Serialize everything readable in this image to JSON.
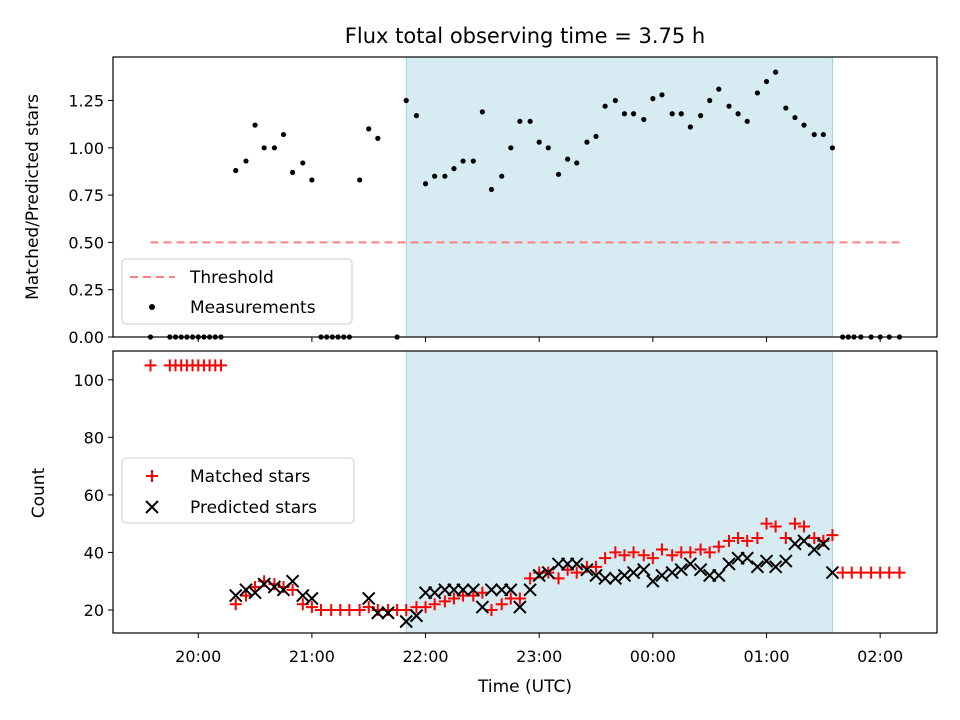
{
  "chart_data": [
    {
      "type": "scatter",
      "title": "Flux total observing time = 3.75 h",
      "ylabel": "Matched/Predicted stars",
      "xlabel": "",
      "x_units": "hours since 20:00 UTC",
      "xlim": [
        -0.75,
        6.5
      ],
      "ylim": [
        0,
        1.48
      ],
      "y_ticks": [
        0,
        0.25,
        0.5,
        0.75,
        1.0,
        1.25
      ],
      "y_tick_labels": [
        "0.00",
        "0.25",
        "0.50",
        "0.75",
        "1.00",
        "1.25"
      ],
      "shaded_span": [
        1.83,
        5.58
      ],
      "legend": {
        "placement": "lower-left",
        "entries": [
          "Threshold",
          "Measurements"
        ]
      },
      "threshold": {
        "name": "Threshold",
        "value": 0.5,
        "x_range": [
          -0.42,
          6.17
        ],
        "color": "#ff8080"
      },
      "measurements": {
        "name": "Measurements",
        "color": "#000000",
        "points": [
          [
            -0.42,
            0.0
          ],
          [
            -0.25,
            0.0
          ],
          [
            -0.2,
            0.0
          ],
          [
            -0.15,
            0.0
          ],
          [
            -0.1,
            0.0
          ],
          [
            -0.05,
            0.0
          ],
          [
            0.0,
            0.0
          ],
          [
            0.05,
            0.0
          ],
          [
            0.1,
            0.0
          ],
          [
            0.15,
            0.0
          ],
          [
            0.2,
            0.0
          ],
          [
            0.33,
            0.88
          ],
          [
            0.42,
            0.93
          ],
          [
            0.5,
            1.12
          ],
          [
            0.58,
            1.0
          ],
          [
            0.67,
            1.0
          ],
          [
            0.75,
            1.07
          ],
          [
            0.83,
            0.87
          ],
          [
            0.92,
            0.92
          ],
          [
            1.0,
            0.83
          ],
          [
            1.08,
            0.0
          ],
          [
            1.13,
            0.0
          ],
          [
            1.18,
            0.0
          ],
          [
            1.23,
            0.0
          ],
          [
            1.28,
            0.0
          ],
          [
            1.33,
            0.0
          ],
          [
            1.42,
            0.83
          ],
          [
            1.5,
            1.1
          ],
          [
            1.58,
            1.05
          ],
          [
            1.75,
            0.0
          ],
          [
            1.83,
            1.25
          ],
          [
            1.92,
            1.17
          ],
          [
            2.0,
            0.81
          ],
          [
            2.08,
            0.85
          ],
          [
            2.17,
            0.85
          ],
          [
            2.25,
            0.89
          ],
          [
            2.33,
            0.93
          ],
          [
            2.42,
            0.93
          ],
          [
            2.5,
            1.19
          ],
          [
            2.58,
            0.78
          ],
          [
            2.67,
            0.85
          ],
          [
            2.75,
            1.0
          ],
          [
            2.83,
            1.14
          ],
          [
            2.92,
            1.14
          ],
          [
            3.0,
            1.03
          ],
          [
            3.08,
            1.0
          ],
          [
            3.17,
            0.86
          ],
          [
            3.25,
            0.94
          ],
          [
            3.33,
            0.92
          ],
          [
            3.42,
            1.03
          ],
          [
            3.5,
            1.06
          ],
          [
            3.58,
            1.22
          ],
          [
            3.67,
            1.25
          ],
          [
            3.75,
            1.18
          ],
          [
            3.83,
            1.18
          ],
          [
            3.92,
            1.15
          ],
          [
            4.0,
            1.26
          ],
          [
            4.08,
            1.28
          ],
          [
            4.17,
            1.18
          ],
          [
            4.25,
            1.18
          ],
          [
            4.33,
            1.11
          ],
          [
            4.42,
            1.17
          ],
          [
            4.5,
            1.25
          ],
          [
            4.58,
            1.31
          ],
          [
            4.67,
            1.22
          ],
          [
            4.75,
            1.18
          ],
          [
            4.83,
            1.14
          ],
          [
            4.92,
            1.29
          ],
          [
            5.0,
            1.35
          ],
          [
            5.08,
            1.4
          ],
          [
            5.17,
            1.21
          ],
          [
            5.25,
            1.16
          ],
          [
            5.33,
            1.12
          ],
          [
            5.42,
            1.07
          ],
          [
            5.5,
            1.07
          ],
          [
            5.58,
            1.0
          ],
          [
            5.67,
            0.0
          ],
          [
            5.72,
            0.0
          ],
          [
            5.77,
            0.0
          ],
          [
            5.83,
            0.0
          ],
          [
            5.92,
            0.0
          ],
          [
            6.0,
            0.0
          ],
          [
            6.08,
            0.0
          ],
          [
            6.17,
            0.0
          ]
        ]
      }
    },
    {
      "type": "scatter",
      "title": "",
      "ylabel": "Count",
      "xlabel": "Time (UTC)",
      "x_units": "hours since 20:00 UTC",
      "xlim": [
        -0.75,
        6.5
      ],
      "ylim": [
        12,
        110
      ],
      "y_ticks": [
        20,
        40,
        60,
        80,
        100
      ],
      "y_tick_labels": [
        "20",
        "40",
        "60",
        "80",
        "100"
      ],
      "x_ticks": [
        0,
        1,
        2,
        3,
        4,
        5,
        6
      ],
      "x_tick_labels": [
        "20:00",
        "21:00",
        "22:00",
        "23:00",
        "00:00",
        "01:00",
        "02:00"
      ],
      "shaded_span": [
        1.83,
        5.58
      ],
      "legend": {
        "placement": "center-left",
        "entries": [
          "Matched stars",
          "Predicted stars"
        ]
      },
      "series": [
        {
          "name": "Matched stars",
          "marker": "plus",
          "color": "#ff0000",
          "points": [
            [
              -0.42,
              105
            ],
            [
              -0.25,
              105
            ],
            [
              -0.2,
              105
            ],
            [
              -0.15,
              105
            ],
            [
              -0.1,
              105
            ],
            [
              -0.05,
              105
            ],
            [
              0.0,
              105
            ],
            [
              0.05,
              105
            ],
            [
              0.1,
              105
            ],
            [
              0.15,
              105
            ],
            [
              0.2,
              105
            ],
            [
              0.33,
              22
            ],
            [
              0.42,
              25
            ],
            [
              0.5,
              28
            ],
            [
              0.58,
              30
            ],
            [
              0.67,
              29
            ],
            [
              0.75,
              28
            ],
            [
              0.83,
              27
            ],
            [
              0.92,
              22
            ],
            [
              1.0,
              21
            ],
            [
              1.08,
              20
            ],
            [
              1.17,
              20
            ],
            [
              1.25,
              20
            ],
            [
              1.33,
              20
            ],
            [
              1.42,
              20
            ],
            [
              1.5,
              21
            ],
            [
              1.58,
              20
            ],
            [
              1.67,
              20
            ],
            [
              1.75,
              20
            ],
            [
              1.83,
              20
            ],
            [
              1.92,
              21
            ],
            [
              2.0,
              21
            ],
            [
              2.08,
              22
            ],
            [
              2.17,
              23
            ],
            [
              2.25,
              24
            ],
            [
              2.33,
              25
            ],
            [
              2.42,
              25
            ],
            [
              2.5,
              26
            ],
            [
              2.58,
              20
            ],
            [
              2.67,
              22
            ],
            [
              2.75,
              24
            ],
            [
              2.83,
              24
            ],
            [
              2.92,
              31
            ],
            [
              3.0,
              33
            ],
            [
              3.08,
              33
            ],
            [
              3.17,
              31
            ],
            [
              3.25,
              34
            ],
            [
              3.33,
              33
            ],
            [
              3.42,
              35
            ],
            [
              3.5,
              35
            ],
            [
              3.58,
              38
            ],
            [
              3.67,
              40
            ],
            [
              3.75,
              39
            ],
            [
              3.83,
              40
            ],
            [
              3.92,
              39
            ],
            [
              4.0,
              38
            ],
            [
              4.08,
              41
            ],
            [
              4.17,
              39
            ],
            [
              4.25,
              40
            ],
            [
              4.33,
              40
            ],
            [
              4.42,
              41
            ],
            [
              4.5,
              40
            ],
            [
              4.58,
              42
            ],
            [
              4.67,
              44
            ],
            [
              4.75,
              45
            ],
            [
              4.83,
              44
            ],
            [
              4.92,
              45
            ],
            [
              5.0,
              50
            ],
            [
              5.08,
              49
            ],
            [
              5.17,
              45
            ],
            [
              5.25,
              50
            ],
            [
              5.33,
              49
            ],
            [
              5.42,
              45
            ],
            [
              5.5,
              44
            ],
            [
              5.58,
              46
            ],
            [
              5.67,
              33
            ],
            [
              5.75,
              33
            ],
            [
              5.83,
              33
            ],
            [
              5.92,
              33
            ],
            [
              6.0,
              33
            ],
            [
              6.08,
              33
            ],
            [
              6.17,
              33
            ]
          ]
        },
        {
          "name": "Predicted stars",
          "marker": "x",
          "color": "#000000",
          "points": [
            [
              0.33,
              25
            ],
            [
              0.42,
              27
            ],
            [
              0.5,
              26
            ],
            [
              0.58,
              29
            ],
            [
              0.67,
              28
            ],
            [
              0.75,
              27
            ],
            [
              0.83,
              30
            ],
            [
              0.92,
              25
            ],
            [
              1.0,
              24
            ],
            [
              1.5,
              24
            ],
            [
              1.58,
              19
            ],
            [
              1.67,
              19
            ],
            [
              1.83,
              16
            ],
            [
              1.92,
              18
            ],
            [
              2.0,
              26
            ],
            [
              2.08,
              26
            ],
            [
              2.17,
              27
            ],
            [
              2.25,
              27
            ],
            [
              2.33,
              27
            ],
            [
              2.42,
              27
            ],
            [
              2.5,
              21
            ],
            [
              2.58,
              27
            ],
            [
              2.67,
              27
            ],
            [
              2.75,
              27
            ],
            [
              2.83,
              21
            ],
            [
              2.92,
              27
            ],
            [
              3.0,
              32
            ],
            [
              3.08,
              33
            ],
            [
              3.17,
              36
            ],
            [
              3.25,
              36
            ],
            [
              3.33,
              36
            ],
            [
              3.42,
              34
            ],
            [
              3.5,
              32
            ],
            [
              3.58,
              31
            ],
            [
              3.67,
              31
            ],
            [
              3.75,
              32
            ],
            [
              3.83,
              33
            ],
            [
              3.92,
              34
            ],
            [
              4.0,
              30
            ],
            [
              4.08,
              32
            ],
            [
              4.17,
              33
            ],
            [
              4.25,
              34
            ],
            [
              4.33,
              36
            ],
            [
              4.42,
              34
            ],
            [
              4.5,
              32
            ],
            [
              4.58,
              32
            ],
            [
              4.67,
              36
            ],
            [
              4.75,
              38
            ],
            [
              4.83,
              38
            ],
            [
              4.92,
              35
            ],
            [
              5.0,
              37
            ],
            [
              5.08,
              35
            ],
            [
              5.17,
              37
            ],
            [
              5.25,
              43
            ],
            [
              5.33,
              44
            ],
            [
              5.42,
              41
            ],
            [
              5.5,
              43
            ],
            [
              5.58,
              33
            ]
          ]
        }
      ]
    }
  ]
}
